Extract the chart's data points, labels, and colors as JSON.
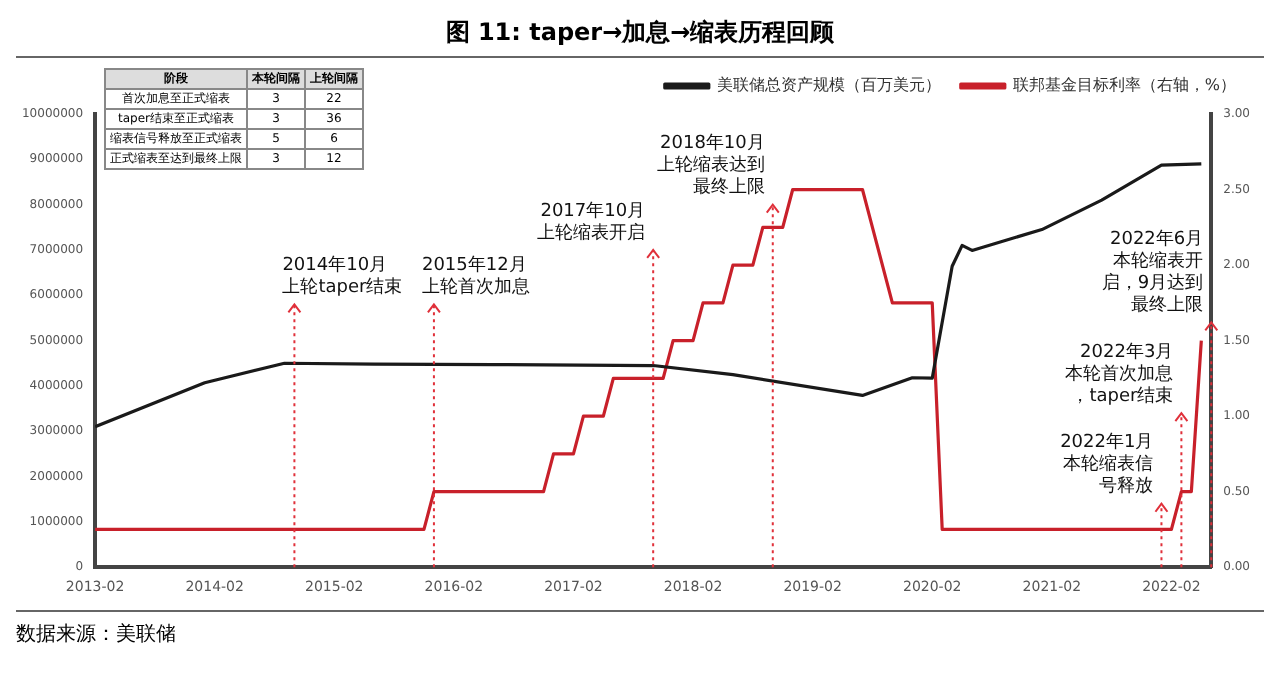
{
  "chart_data": [
    {
      "type": "line",
      "title": "图 11: taper→加息→缩表历程回顾",
      "x": [
        "2013-02",
        "2014-01",
        "2014-09",
        "2015-06",
        "2016-06",
        "2017-10",
        "2018-06",
        "2019-07",
        "2019-12",
        "2020-02",
        "2020-04",
        "2020-05",
        "2020-06",
        "2021-01",
        "2021-07",
        "2022-01",
        "2022-05"
      ],
      "series": [
        {
          "name": "美联储总资产规模（百万美元）",
          "color": "#1a1a1a",
          "values": [
            3100000,
            4070000,
            4500000,
            4480000,
            4470000,
            4450000,
            4250000,
            3790000,
            4180000,
            4170000,
            6640000,
            7100000,
            6990000,
            7450000,
            8100000,
            8870000,
            8900000
          ]
        },
        {
          "name": "联邦基金目标利率（右轴，%）",
          "color": "#c8202a",
          "axis": "y2",
          "x": [
            "2013-02",
            "2015-11",
            "2015-12",
            "2016-11",
            "2016-12",
            "2017-02",
            "2017-03",
            "2017-05",
            "2017-06",
            "2017-11",
            "2017-12",
            "2018-02",
            "2018-03",
            "2018-05",
            "2018-06",
            "2018-08",
            "2018-09",
            "2018-11",
            "2018-12",
            "2019-07",
            "2019-08",
            "2019-09",
            "2019-10",
            "2020-02",
            "2020-03",
            "2022-02",
            "2022-03",
            "2022-04",
            "2022-05"
          ],
          "values": [
            0.25,
            0.25,
            0.5,
            0.5,
            0.75,
            0.75,
            1.0,
            1.0,
            1.25,
            1.25,
            1.5,
            1.5,
            1.75,
            1.75,
            2.0,
            2.0,
            2.25,
            2.25,
            2.5,
            2.5,
            2.25,
            2.0,
            1.75,
            1.75,
            0.25,
            0.25,
            0.5,
            0.5,
            1.5
          ]
        }
      ],
      "xlim": [
        "2013-02",
        "2022-06"
      ],
      "xticks": [
        "2013-02",
        "2014-02",
        "2015-02",
        "2016-02",
        "2017-02",
        "2018-02",
        "2019-02",
        "2020-02",
        "2021-02",
        "2022-02"
      ],
      "ylim": [
        0,
        10000000
      ],
      "yticks": [
        0,
        1000000,
        2000000,
        3000000,
        4000000,
        5000000,
        6000000,
        7000000,
        8000000,
        9000000,
        10000000
      ],
      "y2lim": [
        0,
        3
      ],
      "y2ticks": [
        {
          "value": 0,
          "label": "0.00"
        },
        {
          "value": 0.5,
          "label": "0.50"
        },
        {
          "value": 1,
          "label": "1.00"
        },
        {
          "value": 1.5,
          "label": "1.50"
        },
        {
          "value": 2,
          "label": "2.00"
        },
        {
          "value": 2.5,
          "label": "2.50"
        },
        {
          "value": 3,
          "label": "3.00"
        }
      ],
      "ref_lines": [
        {
          "axis": "x",
          "value": "2014-10",
          "label": "2014年10月上轮taper结束",
          "color": "#e0303a",
          "line_style": "dotted"
        },
        {
          "axis": "x",
          "value": "2015-12",
          "label": "2015年12月上轮首次加息",
          "color": "#e0303a",
          "line_style": "dotted"
        },
        {
          "axis": "x",
          "value": "2017-10",
          "label": "2017年10月上轮缩表开启",
          "color": "#e0303a",
          "line_style": "dotted"
        },
        {
          "axis": "x",
          "value": "2018-10",
          "label": "2018年10月上轮缩表达到最终上限",
          "color": "#e0303a",
          "line_style": "dotted"
        },
        {
          "axis": "x",
          "value": "2022-01",
          "label": "2022年1月本轮缩表信号释放",
          "color": "#e0303a",
          "line_style": "dotted"
        },
        {
          "axis": "x",
          "value": "2022-03",
          "label": "2022年3月本轮首次加息，taper结束",
          "color": "#e0303a",
          "line_style": "dotted"
        },
        {
          "axis": "x",
          "value": "2022-06",
          "label": "2022年6月本轮缩表开启，9月达到最终上限",
          "color": "#e0303a",
          "line_style": "dotted"
        }
      ],
      "legend": "top right",
      "marker": "none",
      "line_style": "solid",
      "annotations": [
        "数据来源：美联储"
      ]
    },
    {
      "type": "other",
      "legend_title": "阶段",
      "data_labels": true,
      "categories": [
        "首次加息至正式缩表",
        "taper结束至正式缩表",
        "缩表信号释放至正式缩表",
        "正式缩表至达到最终上限"
      ],
      "series": [
        {
          "name": "本轮间隔",
          "values": [
            3,
            3,
            5,
            3
          ]
        },
        {
          "name": "上轮间隔",
          "values": [
            22,
            36,
            6,
            12
          ]
        }
      ]
    }
  ]
}
